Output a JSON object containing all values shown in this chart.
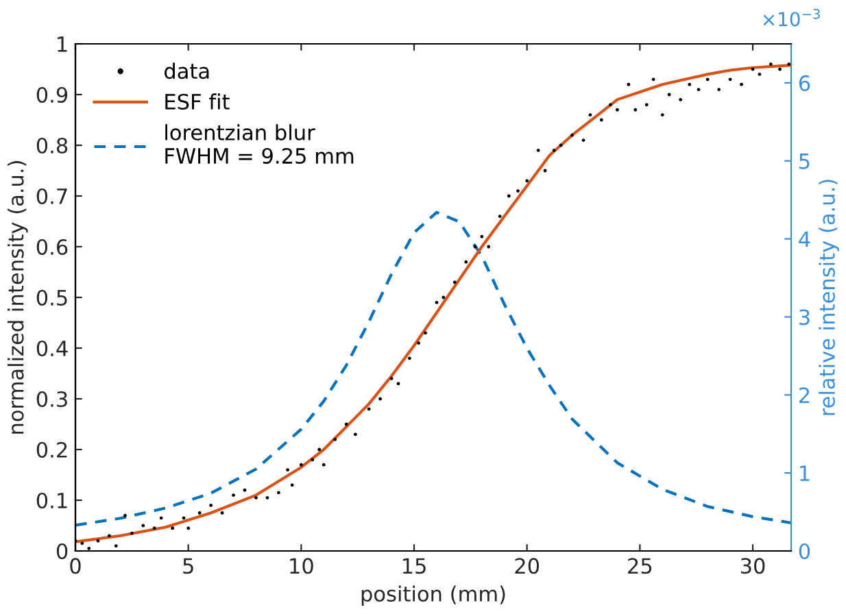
{
  "chart_data": {
    "type": "line",
    "xlabel": "position (mm)",
    "ylabel": "normalized intensity (a.u.)",
    "y2label": "relative intensity (a.u.)",
    "annotations": [
      "×10$^{−3}$"
    ],
    "xlim": [
      0,
      31.7
    ],
    "xticks": [
      0,
      5,
      10,
      15,
      20,
      25,
      30
    ],
    "ylim": [
      0,
      1
    ],
    "yticks": [
      0,
      {
        "value": 0.1,
        "label": "0.1"
      },
      {
        "value": 0.2,
        "label": "0.2"
      },
      {
        "value": 0.3,
        "label": "0.3"
      },
      {
        "value": 0.4,
        "label": "0.4"
      },
      {
        "value": 0.5,
        "label": "0.5"
      },
      {
        "value": 0.6,
        "label": "0.6"
      },
      {
        "value": 0.7,
        "label": "0.7"
      },
      {
        "value": 0.8,
        "label": "0.8"
      },
      {
        "value": 0.9,
        "label": "0.9"
      },
      1
    ],
    "y2lim": [
      0,
      6.5
    ],
    "y2ticks": [
      0,
      1,
      2,
      3,
      4,
      5,
      6
    ],
    "grid": false,
    "legend": "top left",
    "series": [
      {
        "name": "data",
        "type": "scatter",
        "marker": "circle",
        "color": "#000000",
        "x": [
          0,
          0.3,
          0.6,
          1,
          1.5,
          1.8,
          2.2,
          2.5,
          3,
          3.5,
          3.8,
          4.3,
          4.8,
          5,
          5.5,
          6,
          6.5,
          7,
          7.5,
          8,
          8.5,
          9,
          9.4,
          9.6,
          10,
          10.5,
          10.8,
          11,
          11.5,
          12,
          12.4,
          13,
          13.5,
          14,
          14.3,
          14.8,
          15.2,
          15.5,
          16,
          16.3,
          16.8,
          17.3,
          17.7,
          18,
          18.3,
          18.8,
          19.2,
          19.6,
          20,
          20.5,
          20.8,
          21.2,
          21.5,
          22,
          22.5,
          22.8,
          23.3,
          23.7,
          24,
          24.5,
          24.8,
          25.3,
          25.6,
          26,
          26.3,
          26.8,
          27.2,
          27.6,
          28,
          28.5,
          29,
          29.5,
          30,
          30.3,
          30.8,
          31.2,
          31.6
        ],
        "values": [
          0.02,
          0.015,
          0.005,
          0.02,
          0.03,
          0.01,
          0.07,
          0.035,
          0.05,
          0.045,
          0.065,
          0.045,
          0.065,
          0.045,
          0.075,
          0.09,
          0.075,
          0.11,
          0.12,
          0.105,
          0.105,
          0.115,
          0.16,
          0.13,
          0.17,
          0.18,
          0.2,
          0.17,
          0.22,
          0.25,
          0.23,
          0.28,
          0.3,
          0.34,
          0.33,
          0.38,
          0.41,
          0.43,
          0.49,
          0.5,
          0.53,
          0.57,
          0.6,
          0.62,
          0.6,
          0.66,
          0.7,
          0.71,
          0.73,
          0.79,
          0.75,
          0.79,
          0.8,
          0.82,
          0.81,
          0.86,
          0.85,
          0.88,
          0.87,
          0.92,
          0.87,
          0.88,
          0.93,
          0.86,
          0.9,
          0.89,
          0.92,
          0.91,
          0.93,
          0.91,
          0.93,
          0.92,
          0.95,
          0.94,
          0.96,
          0.95,
          0.96
        ]
      },
      {
        "name": "ESF fit",
        "line_style": "solid",
        "color": "#d95319",
        "x": [
          0,
          2,
          4,
          6,
          8,
          10,
          11,
          12,
          13,
          14,
          15,
          16,
          17,
          18,
          19,
          20,
          21,
          22,
          23,
          24,
          25,
          26,
          27,
          28,
          29,
          30,
          31.7
        ],
        "values": [
          0.018,
          0.03,
          0.047,
          0.075,
          0.11,
          0.165,
          0.2,
          0.245,
          0.29,
          0.345,
          0.405,
          0.47,
          0.535,
          0.6,
          0.66,
          0.72,
          0.78,
          0.82,
          0.855,
          0.89,
          0.905,
          0.92,
          0.93,
          0.94,
          0.948,
          0.953,
          0.958
        ]
      },
      {
        "name": "lorentzian blur\nFWHM = 9.25 mm",
        "line_style": "dashed",
        "axis": "y2",
        "color": "#0072bd",
        "x": [
          0,
          2,
          4,
          6,
          8,
          10,
          11,
          12,
          13,
          14,
          15,
          16,
          17,
          18,
          19,
          20,
          21,
          22,
          24,
          26,
          28,
          30,
          31.7
        ],
        "values": [
          0.33,
          0.42,
          0.55,
          0.74,
          1.05,
          1.56,
          1.92,
          2.38,
          2.94,
          3.55,
          4.08,
          4.34,
          4.22,
          3.78,
          3.16,
          2.6,
          2.12,
          1.69,
          1.13,
          0.79,
          0.57,
          0.44,
          0.36
        ]
      }
    ]
  }
}
